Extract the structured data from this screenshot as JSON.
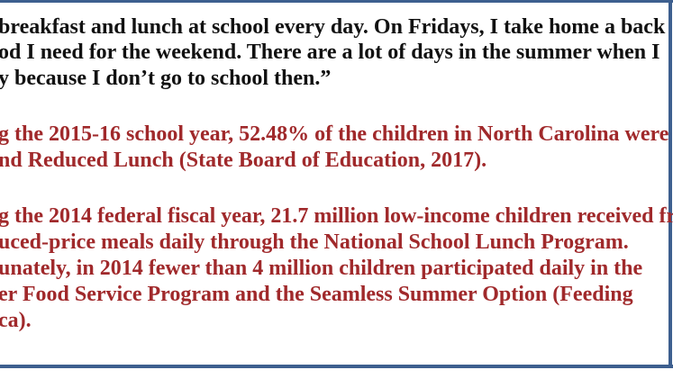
{
  "document": {
    "quote_lines": [
      "breakfast and lunch at school every day. On Fridays, I take home a back",
      "od I need for the weekend. There are a lot of days in the summer when I",
      "y because I don’t go to school then.”"
    ],
    "fact1_lines": [
      "g the 2015-16 school year, 52.48% of the children in North Carolina were",
      "nd Reduced Lunch (State Board of Education, 2017)."
    ],
    "fact2_lines": [
      "g the 2014 federal fiscal year, 21.7 million low-income children received fr",
      "uced-price meals daily through the National School Lunch Program.",
      "unately, in 2014 fewer than 4 million children participated daily in the",
      "er Food Service Program and the Seamless Summer Option (Feeding",
      "ca)."
    ]
  },
  "colors": {
    "border": "#3d5f8f",
    "quote_text": "#111111",
    "fact_text": "#a0292b"
  }
}
